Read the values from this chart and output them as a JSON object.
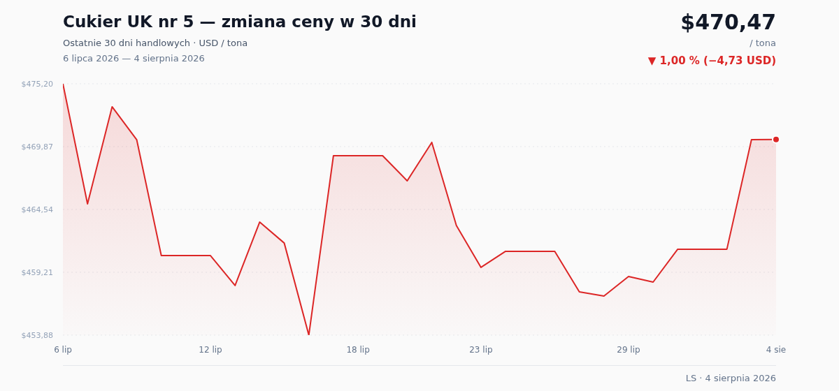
{
  "chart_data": {
    "type": "area",
    "title": "Cukier UK nr 5 — zmiana ceny w 30 dni",
    "subtitle": "Ostatnie 30 dni handlowych · USD / tona",
    "categories": [
      "6 lip",
      null,
      null,
      null,
      null,
      null,
      "12 lip",
      null,
      null,
      null,
      null,
      null,
      "18 lip",
      null,
      null,
      null,
      null,
      "23 lip",
      null,
      null,
      null,
      null,
      null,
      "29 lip",
      null,
      null,
      null,
      null,
      null,
      "4 sie"
    ],
    "series": [
      {
        "color": "#dc2626",
        "values": [
          475.2,
          465.01,
          473.25,
          470.46,
          460.63,
          460.63,
          460.63,
          458.09,
          463.47,
          461.69,
          453.88,
          469.1,
          469.1,
          469.1,
          466.97,
          470.23,
          463.18,
          459.63,
          460.99,
          460.99,
          460.99,
          457.55,
          457.2,
          458.86,
          458.38,
          461.17,
          461.17,
          461.17,
          470.46,
          470.47
        ]
      }
    ],
    "ylim": [
      453.88,
      475.2
    ],
    "yticks": [
      {
        "value": 453.88,
        "label": "$453,88"
      },
      {
        "value": 459.21,
        "label": "$459,21"
      },
      {
        "value": 464.54,
        "label": "$464,54"
      },
      {
        "value": 469.87,
        "label": "$469,87"
      },
      {
        "value": 475.2,
        "label": "$475,20"
      }
    ],
    "grid": "y",
    "legend": false,
    "marker": "none",
    "line_style": "solid",
    "annotations": [
      "$470,47",
      "/ tona",
      "▼ 1,00 % (−4,73 USD)",
      "6 lipca 2026 — 4 sierpnia 2026",
      "LS · 4 sierpnia 2026"
    ]
  }
}
